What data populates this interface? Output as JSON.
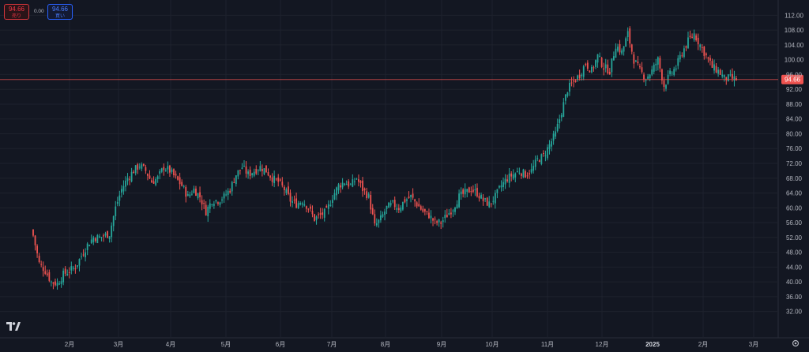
{
  "header": {
    "sell_price": "94.66",
    "sell_label": "売り",
    "spread": "0.00",
    "buy_price": "94.66",
    "buy_label": "買い"
  },
  "colors": {
    "background": "#131722",
    "grid": "#1e222d",
    "up": "#26a69a",
    "down": "#ef5350",
    "text": "#b2b5be",
    "price_line": "#ef5350"
  },
  "icons": [
    "tradingview-logo",
    "settings-gear-icon"
  ],
  "chart_data": {
    "type": "candlestick",
    "y_range": [
      30,
      114
    ],
    "y_ticks": [
      "112.00",
      "108.00",
      "104.00",
      "100.00",
      "96.00",
      "92.00",
      "88.00",
      "84.00",
      "80.00",
      "76.00",
      "72.00",
      "68.00",
      "64.00",
      "60.00",
      "56.00",
      "52.00",
      "48.00",
      "44.00",
      "40.00",
      "36.00",
      "32.00"
    ],
    "x_ticks": [
      "2月",
      "3月",
      "4月",
      "5月",
      "6月",
      "7月",
      "8月",
      "9月",
      "10月",
      "11月",
      "12月",
      "2025",
      "2月",
      "3月"
    ],
    "last_price": "94.66",
    "grid": true,
    "waypoints": [
      [
        0,
        52.5
      ],
      [
        3,
        45
      ],
      [
        6,
        43
      ],
      [
        9,
        40
      ],
      [
        12,
        39.5
      ],
      [
        15,
        42
      ],
      [
        18,
        43
      ],
      [
        21,
        44
      ],
      [
        24,
        47
      ],
      [
        27,
        50
      ],
      [
        30,
        52
      ],
      [
        33,
        52
      ],
      [
        38,
        53
      ],
      [
        41,
        60
      ],
      [
        44,
        65
      ],
      [
        47,
        68
      ],
      [
        50,
        70
      ],
      [
        53,
        71.5
      ],
      [
        56,
        70
      ],
      [
        59,
        67
      ],
      [
        62,
        68
      ],
      [
        65,
        71
      ],
      [
        68,
        70
      ],
      [
        71,
        68
      ],
      [
        74,
        66
      ],
      [
        77,
        63
      ],
      [
        80,
        65
      ],
      [
        83,
        63
      ],
      [
        86,
        59
      ],
      [
        89,
        62
      ],
      [
        92,
        62
      ],
      [
        95,
        63
      ],
      [
        98,
        65
      ],
      [
        101,
        69
      ],
      [
        104,
        71
      ],
      [
        107,
        69
      ],
      [
        110,
        70
      ],
      [
        113,
        71
      ],
      [
        116,
        70
      ],
      [
        119,
        68
      ],
      [
        122,
        67
      ],
      [
        125,
        65
      ],
      [
        128,
        62
      ],
      [
        131,
        61
      ],
      [
        134,
        62
      ],
      [
        137,
        60
      ],
      [
        140,
        57
      ],
      [
        143,
        58
      ],
      [
        146,
        59
      ],
      [
        149,
        63
      ],
      [
        152,
        66
      ],
      [
        155,
        67
      ],
      [
        158,
        66
      ],
      [
        161,
        68
      ],
      [
        164,
        65
      ],
      [
        167,
        63
      ],
      [
        170,
        55
      ],
      [
        173,
        57
      ],
      [
        176,
        60
      ],
      [
        179,
        61
      ],
      [
        182,
        60
      ],
      [
        185,
        62
      ],
      [
        188,
        63
      ],
      [
        191,
        61
      ],
      [
        194,
        59
      ],
      [
        197,
        58
      ],
      [
        200,
        56
      ],
      [
        203,
        56
      ],
      [
        206,
        58
      ],
      [
        209,
        60
      ],
      [
        212,
        63
      ],
      [
        215,
        64
      ],
      [
        218,
        65
      ],
      [
        221,
        64
      ],
      [
        224,
        62
      ],
      [
        227,
        61
      ],
      [
        230,
        63
      ],
      [
        233,
        66
      ],
      [
        236,
        68
      ],
      [
        239,
        69
      ],
      [
        242,
        70
      ],
      [
        245,
        69
      ],
      [
        248,
        70
      ],
      [
        251,
        73
      ],
      [
        254,
        74
      ],
      [
        257,
        77
      ],
      [
        260,
        80
      ],
      [
        263,
        86
      ],
      [
        266,
        92
      ],
      [
        269,
        94
      ],
      [
        272,
        96
      ],
      [
        275,
        99
      ],
      [
        278,
        97
      ],
      [
        281,
        101
      ],
      [
        284,
        98
      ],
      [
        287,
        97
      ],
      [
        290,
        104
      ],
      [
        293,
        102
      ],
      [
        296,
        107
      ],
      [
        299,
        100
      ],
      [
        302,
        97
      ],
      [
        305,
        95
      ],
      [
        308,
        97
      ],
      [
        311,
        100
      ],
      [
        314,
        93
      ],
      [
        317,
        96
      ],
      [
        320,
        98
      ],
      [
        323,
        102
      ],
      [
        326,
        105
      ],
      [
        329,
        107
      ],
      [
        332,
        104
      ],
      [
        335,
        101
      ],
      [
        338,
        98
      ],
      [
        341,
        97
      ],
      [
        344,
        95
      ],
      [
        347,
        95
      ],
      [
        350,
        94.66
      ]
    ]
  }
}
